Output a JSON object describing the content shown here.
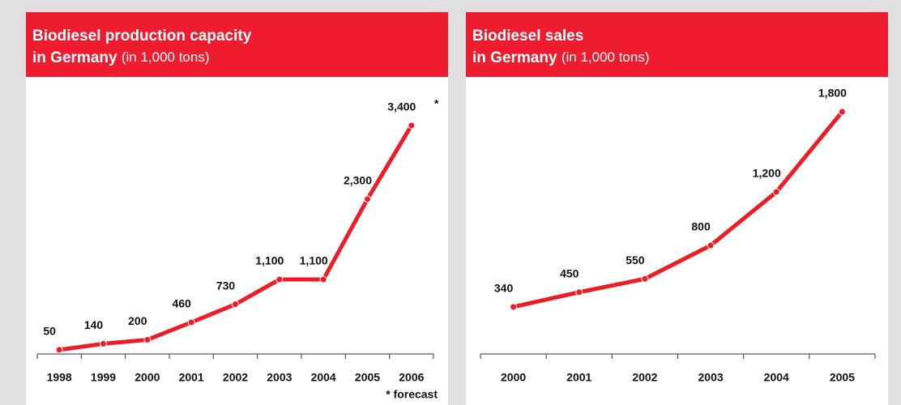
{
  "chart_data": [
    {
      "type": "line",
      "title": [
        "Biodiesel production capacity",
        "in Germany"
      ],
      "subtitle": "(in 1,000 tons)",
      "categories": [
        "1998",
        "1999",
        "2000",
        "2001",
        "2002",
        "2003",
        "2004",
        "2005",
        "2006"
      ],
      "values": [
        50,
        140,
        200,
        460,
        730,
        1100,
        1100,
        2300,
        3400
      ],
      "value_labels": [
        "50",
        "140",
        "200",
        "460",
        "730",
        "1,100",
        "1,100",
        "2,300",
        "3,400"
      ],
      "annotations": [
        "*",
        "* forecast"
      ],
      "color": "#ee1c25",
      "ylim": [
        0,
        3500
      ]
    },
    {
      "type": "line",
      "title": [
        "Biodiesel sales",
        "in Germany"
      ],
      "subtitle": "(in 1,000 tons)",
      "categories": [
        "2000",
        "2001",
        "2002",
        "2003",
        "2004",
        "2005"
      ],
      "values": [
        340,
        450,
        550,
        800,
        1200,
        1800
      ],
      "value_labels": [
        "340",
        "450",
        "550",
        "800",
        "1,200",
        "1,800"
      ],
      "color": "#ee1c25",
      "ylim": [
        0,
        2000
      ]
    }
  ]
}
